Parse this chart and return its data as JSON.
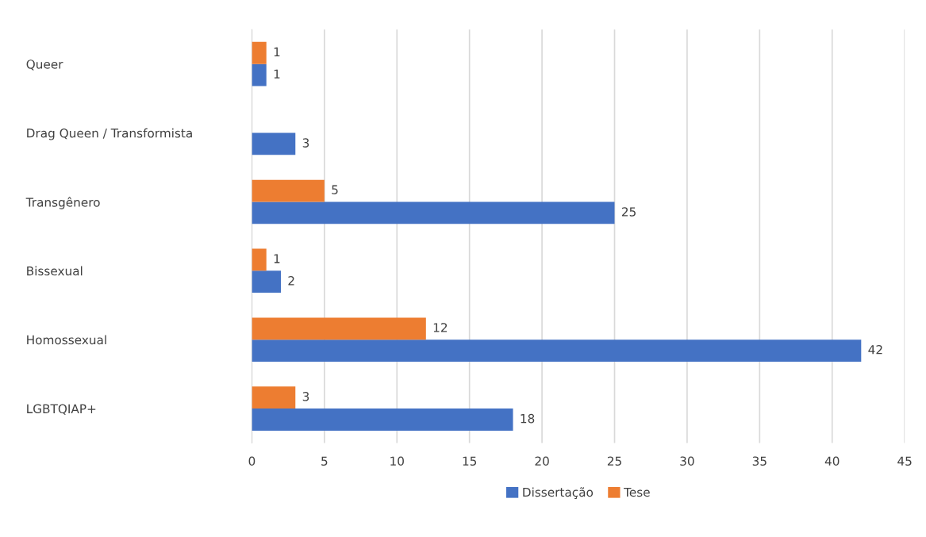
{
  "chart_data": {
    "type": "bar",
    "orientation": "horizontal",
    "categories": [
      "Queer",
      "Drag Queen / Transformista",
      "Transgênero",
      "Bissexual",
      "Homossexual",
      "LGBTQIAP+"
    ],
    "series": [
      {
        "name": "Dissertação",
        "color": "#4472c4",
        "values": [
          1,
          3,
          25,
          2,
          42,
          18
        ]
      },
      {
        "name": "Tese",
        "color": "#ed7d31",
        "values": [
          1,
          null,
          5,
          1,
          12,
          3
        ]
      }
    ],
    "xlim": [
      0,
      45
    ],
    "xticks": [
      0,
      5,
      10,
      15,
      20,
      25,
      30,
      35,
      40,
      45
    ],
    "grid": "x",
    "legend": "bottom",
    "data_labels": true
  }
}
